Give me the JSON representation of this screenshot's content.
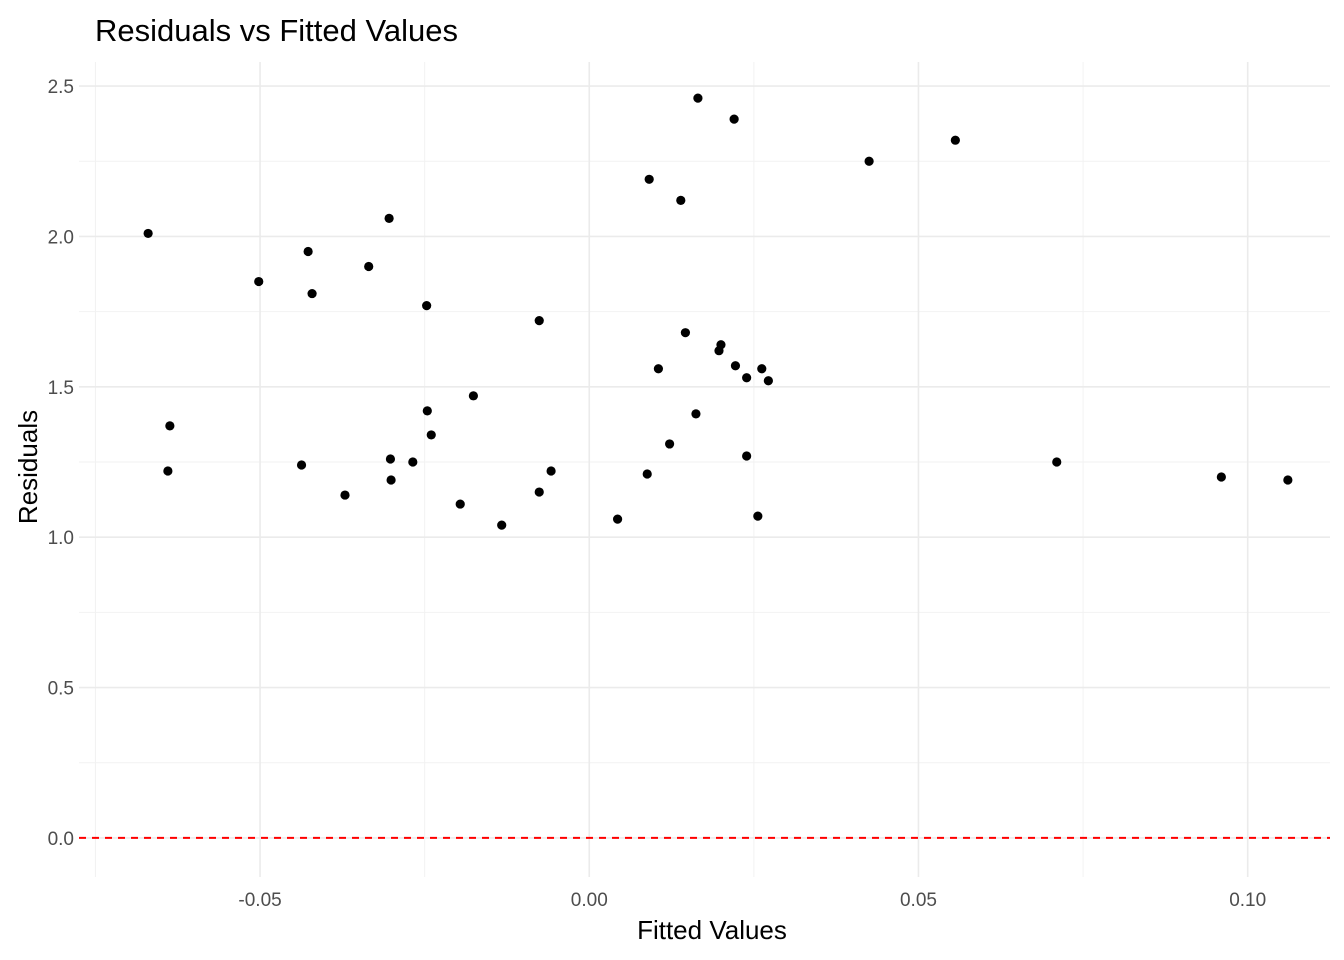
{
  "chart_data": {
    "type": "scatter",
    "title": "Residuals vs Fitted Values",
    "xlabel": "Fitted Values",
    "ylabel": "Residuals",
    "xlim": [
      -0.0775,
      0.1125
    ],
    "ylim": [
      -0.13,
      2.58
    ],
    "x_ticks": [
      -0.05,
      0.0,
      0.05,
      0.1
    ],
    "x_tick_labels": [
      "-0.05",
      "0.00",
      "0.05",
      "0.10"
    ],
    "y_ticks": [
      0.0,
      0.5,
      1.0,
      1.5,
      2.0,
      2.5
    ],
    "y_tick_labels": [
      "0.0",
      "0.5",
      "1.0",
      "1.5",
      "2.0",
      "2.5"
    ],
    "grid": true,
    "legend": "none",
    "point_color": "#000000",
    "reference_line": {
      "y": 0,
      "color": "#ff0000",
      "style": "dashed"
    },
    "points": [
      {
        "x": -0.067,
        "y": 2.01
      },
      {
        "x": -0.0637,
        "y": 1.37
      },
      {
        "x": -0.064,
        "y": 1.22
      },
      {
        "x": -0.0502,
        "y": 1.85
      },
      {
        "x": -0.0427,
        "y": 1.95
      },
      {
        "x": -0.0421,
        "y": 1.81
      },
      {
        "x": -0.0437,
        "y": 1.24
      },
      {
        "x": -0.0371,
        "y": 1.14
      },
      {
        "x": -0.0335,
        "y": 1.9
      },
      {
        "x": -0.0304,
        "y": 2.06
      },
      {
        "x": -0.0302,
        "y": 1.26
      },
      {
        "x": -0.0301,
        "y": 1.19
      },
      {
        "x": -0.0268,
        "y": 1.25
      },
      {
        "x": -0.0247,
        "y": 1.77
      },
      {
        "x": -0.0246,
        "y": 1.42
      },
      {
        "x": -0.024,
        "y": 1.34
      },
      {
        "x": -0.0196,
        "y": 1.11
      },
      {
        "x": -0.0176,
        "y": 1.47
      },
      {
        "x": -0.0133,
        "y": 1.04
      },
      {
        "x": -0.0076,
        "y": 1.72
      },
      {
        "x": -0.0076,
        "y": 1.15
      },
      {
        "x": -0.0058,
        "y": 1.22
      },
      {
        "x": 0.0043,
        "y": 1.06
      },
      {
        "x": 0.0091,
        "y": 2.19
      },
      {
        "x": 0.0105,
        "y": 1.56
      },
      {
        "x": 0.0088,
        "y": 1.21
      },
      {
        "x": 0.0122,
        "y": 1.31
      },
      {
        "x": 0.0146,
        "y": 1.68
      },
      {
        "x": 0.0139,
        "y": 2.12
      },
      {
        "x": 0.0165,
        "y": 2.46
      },
      {
        "x": 0.0162,
        "y": 1.41
      },
      {
        "x": 0.02,
        "y": 1.64
      },
      {
        "x": 0.0197,
        "y": 1.62
      },
      {
        "x": 0.022,
        "y": 2.39
      },
      {
        "x": 0.0222,
        "y": 1.57
      },
      {
        "x": 0.0239,
        "y": 1.53
      },
      {
        "x": 0.0239,
        "y": 1.27
      },
      {
        "x": 0.0262,
        "y": 1.56
      },
      {
        "x": 0.0272,
        "y": 1.52
      },
      {
        "x": 0.0256,
        "y": 1.07
      },
      {
        "x": 0.0425,
        "y": 2.25
      },
      {
        "x": 0.0556,
        "y": 2.32
      },
      {
        "x": 0.071,
        "y": 1.25
      },
      {
        "x": 0.096,
        "y": 1.2
      },
      {
        "x": 0.1061,
        "y": 1.19
      }
    ]
  }
}
